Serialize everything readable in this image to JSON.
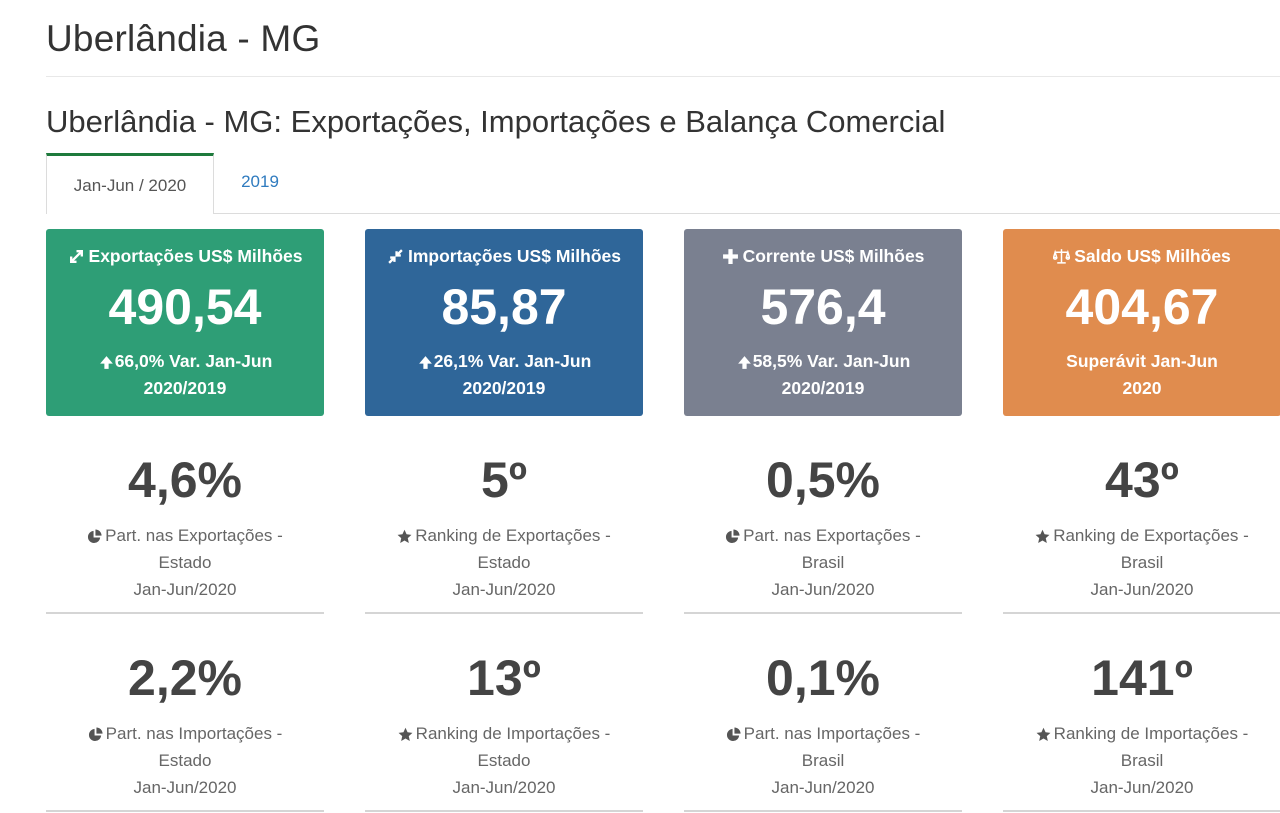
{
  "page": {
    "title": "Uberlândia - MG",
    "section_title": "Uberlândia - MG: Exportações, Importações e Balança Comercial"
  },
  "tabs": [
    {
      "label": "Jan-Jun / 2020",
      "active": true
    },
    {
      "label": "2019",
      "active": false
    }
  ],
  "cards": [
    {
      "header": "Exportações US$ Milhões",
      "value": "490,54",
      "note_line1": "66,0% Var. Jan-Jun",
      "note_line2": "2020/2019",
      "color": "#2e9e76",
      "icon": "arrow-expand-icon"
    },
    {
      "header": "Importações US$ Milhões",
      "value": "85,87",
      "note_line1": "26,1% Var. Jan-Jun",
      "note_line2": "2020/2019",
      "color": "#2f6699",
      "icon": "arrow-compress-icon"
    },
    {
      "header": "Corrente US$ Milhões",
      "value": "576,4",
      "note_line1": "58,5% Var. Jan-Jun",
      "note_line2": "2020/2019",
      "color": "#7a8090",
      "icon": "plus-icon"
    },
    {
      "header": "Saldo US$ Milhões",
      "value": "404,67",
      "note_line1": "Superávit Jan-Jun",
      "note_line2": "2020",
      "color": "#e08c4e",
      "icon": "balance-scale-icon"
    }
  ],
  "stats_row1": [
    {
      "value": "4,6%",
      "label1": "Part. nas Exportações -",
      "label2": "Estado",
      "label3": "Jan-Jun/2020",
      "icon": "pie-chart-icon"
    },
    {
      "value": "5º",
      "label1": "Ranking de Exportações -",
      "label2": "Estado",
      "label3": "Jan-Jun/2020",
      "icon": "star-icon"
    },
    {
      "value": "0,5%",
      "label1": "Part. nas Exportações -",
      "label2": "Brasil",
      "label3": "Jan-Jun/2020",
      "icon": "pie-chart-icon"
    },
    {
      "value": "43º",
      "label1": "Ranking de Exportações -",
      "label2": "Brasil",
      "label3": "Jan-Jun/2020",
      "icon": "star-icon"
    }
  ],
  "stats_row2": [
    {
      "value": "2,2%",
      "label1": "Part. nas Importações -",
      "label2": "Estado",
      "label3": "Jan-Jun/2020",
      "icon": "pie-chart-icon"
    },
    {
      "value": "13º",
      "label1": "Ranking de Importações -",
      "label2": "Estado",
      "label3": "Jan-Jun/2020",
      "icon": "star-icon"
    },
    {
      "value": "0,1%",
      "label1": "Part. nas Importações -",
      "label2": "Brasil",
      "label3": "Jan-Jun/2020",
      "icon": "pie-chart-icon"
    },
    {
      "value": "141º",
      "label1": "Ranking de Importações -",
      "label2": "Brasil",
      "label3": "Jan-Jun/2020",
      "icon": "star-icon"
    }
  ]
}
